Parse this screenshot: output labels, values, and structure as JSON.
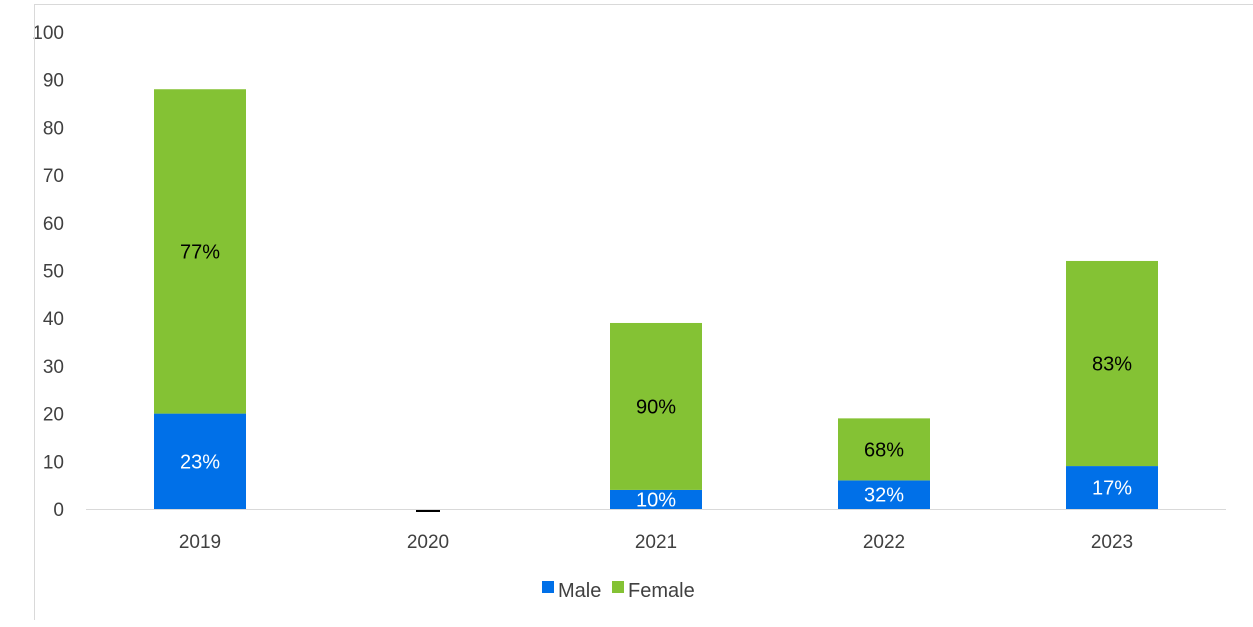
{
  "chart_data": {
    "type": "bar",
    "stacked": true,
    "categories": [
      "2019",
      "2020",
      "2021",
      "2022",
      "2023"
    ],
    "series": [
      {
        "name": "Male",
        "color": "#0070e8",
        "label_color": "#ffffff",
        "values": [
          20,
          0,
          4,
          6,
          9
        ],
        "labels": [
          "23%",
          "",
          "10%",
          "32%",
          "17%"
        ]
      },
      {
        "name": "Female",
        "color": "#84c234",
        "label_color": "#000000",
        "values": [
          68,
          0,
          35,
          13,
          43
        ],
        "labels": [
          "77%",
          "",
          "90%",
          "68%",
          "83%"
        ]
      }
    ],
    "ylim": [
      0,
      100
    ],
    "yticks": [
      "0",
      "10",
      "20",
      "30",
      "40",
      "50",
      "60",
      "70",
      "80",
      "90",
      "100"
    ],
    "grid": false,
    "legend_position": "bottom",
    "title": "",
    "xlabel": "",
    "ylabel": ""
  }
}
